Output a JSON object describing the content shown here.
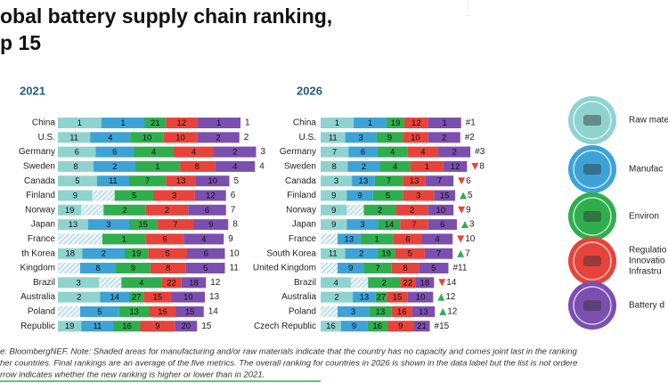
{
  "title": [
    "obal battery supply chain ranking,",
    "p 15"
  ],
  "legend": [
    {
      "lines": [
        "Raw mate"
      ],
      "color": "#8fd3cf"
    },
    {
      "lines": [
        "Manufac"
      ],
      "color": "#3da3d6"
    },
    {
      "lines": [
        "Environ"
      ],
      "color": "#2fae4e"
    },
    {
      "lines": [
        "Regulatio",
        "Innovatio",
        "Infrastru"
      ],
      "color": "#e8433a"
    },
    {
      "lines": [
        "Battery d"
      ],
      "color": "#7b4faf"
    }
  ],
  "panels": [
    {
      "title": "2021",
      "rows": [
        {
          "label": "China",
          "values": [
            1,
            1,
            21,
            12,
            1
          ],
          "rank": 1
        },
        {
          "label": "U.S.",
          "values": [
            11,
            4,
            10,
            10,
            2
          ],
          "rank": 2
        },
        {
          "label": "Germany",
          "values": [
            6,
            6,
            4,
            4,
            2
          ],
          "rank": 3
        },
        {
          "label": "Sweden",
          "values": [
            8,
            2,
            1,
            8,
            4
          ],
          "rank": 4
        },
        {
          "label": "Canada",
          "values": [
            5,
            11,
            7,
            13,
            10
          ],
          "rank": 5
        },
        {
          "label": "Finland",
          "values": [
            9,
            null,
            5,
            3,
            12
          ],
          "rank": 6
        },
        {
          "label": "Norway",
          "values": [
            19,
            null,
            2,
            2,
            6
          ],
          "rank": 7
        },
        {
          "label": "Japan",
          "values": [
            13,
            3,
            15,
            7,
            9
          ],
          "rank": 8
        },
        {
          "label": "France",
          "values": [
            null,
            null,
            1,
            6,
            4
          ],
          "rank": 9
        },
        {
          "label": "th Korea",
          "values": [
            18,
            2,
            19,
            5,
            6
          ],
          "rank": 10
        },
        {
          "label": "Kingdom",
          "values": [
            null,
            8,
            9,
            8,
            5
          ],
          "rank": 11
        },
        {
          "label": "Brazil",
          "values": [
            3,
            null,
            4,
            22,
            18
          ],
          "rank": 12
        },
        {
          "label": "Australia",
          "values": [
            2,
            14,
            27,
            15,
            10
          ],
          "rank": 13
        },
        {
          "label": "Poland",
          "values": [
            null,
            5,
            13,
            16,
            15
          ],
          "rank": 14
        },
        {
          "label": "Republic",
          "values": [
            19,
            11,
            16,
            9,
            20
          ],
          "rank": 15
        }
      ]
    },
    {
      "title": "2026",
      "rows": [
        {
          "label": "China",
          "values": [
            1,
            1,
            19,
            12,
            1
          ],
          "rank": "#1"
        },
        {
          "label": "U.S.",
          "values": [
            11,
            3,
            9,
            10,
            2
          ],
          "rank": "#2"
        },
        {
          "label": "Germany",
          "values": [
            7,
            6,
            4,
            4,
            2
          ],
          "rank": "#3"
        },
        {
          "label": "Sweden",
          "values": [
            8,
            2,
            4,
            1,
            12
          ],
          "rank": "8",
          "trend": "down"
        },
        {
          "label": "Canada",
          "values": [
            3,
            13,
            7,
            13,
            7
          ],
          "rank": "6",
          "trend": "down"
        },
        {
          "label": "Finland",
          "values": [
            9,
            9,
            5,
            3,
            15
          ],
          "rank": "5",
          "trend": "up"
        },
        {
          "label": "Norway",
          "values": [
            9,
            null,
            2,
            2,
            10
          ],
          "rank": "9",
          "trend": "down"
        },
        {
          "label": "Japan",
          "values": [
            9,
            3,
            14,
            7,
            6
          ],
          "rank": "3",
          "trend": "up"
        },
        {
          "label": "France",
          "values": [
            null,
            13,
            1,
            6,
            4
          ],
          "rank": "10",
          "trend": "down"
        },
        {
          "label": "South Korea",
          "values": [
            11,
            2,
            19,
            5,
            7
          ],
          "rank": "7",
          "trend": "up"
        },
        {
          "label": "United Kingdom",
          "values": [
            null,
            9,
            7,
            8,
            5
          ],
          "rank": "#11"
        },
        {
          "label": "Brazil",
          "values": [
            4,
            null,
            2,
            22,
            18
          ],
          "rank": "14",
          "trend": "down"
        },
        {
          "label": "Australia",
          "values": [
            2,
            13,
            27,
            15,
            10
          ],
          "rank": "12",
          "trend": "up"
        },
        {
          "label": "Poland",
          "values": [
            null,
            3,
            13,
            16,
            13
          ],
          "rank": "12",
          "trend": "up"
        },
        {
          "label": "Czech Republic",
          "values": [
            16,
            9,
            16,
            9,
            21
          ],
          "rank": "#15"
        }
      ]
    }
  ],
  "note": [
    "e: BloombergNEF. Note: Shaded areas for manufacturing and/or raw materials indicate that the country has no capacity and comes joint last in the ranking",
    "her countries. Final rankings are an average of the five metrics. The overall ranking for countries in 2026 is shown in the data label but the list is not ordere",
    "rrow indicates whether the new ranking is higher or lower than in 2021."
  ]
}
